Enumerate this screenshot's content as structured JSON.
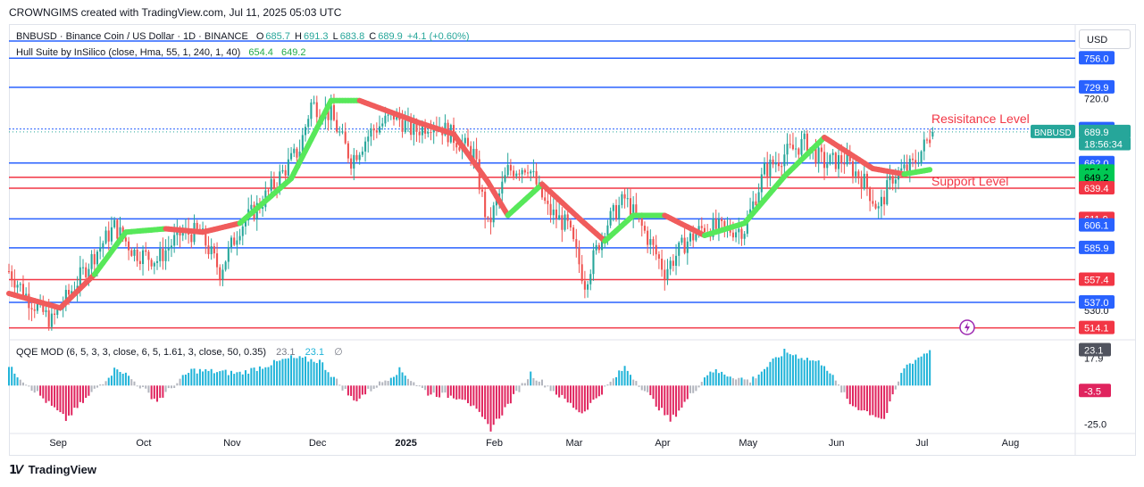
{
  "header": {
    "credit": "CROWNGIMS created with TradingView.com, Jul 11, 2025 05:03 UTC"
  },
  "footer": {
    "brand": "TradingView",
    "brand_icon": "tradingview-logo-icon"
  },
  "currency_button": "USD",
  "legend": {
    "symbol": "BNBUSD · Binance Coin / US Dollar · 1D · BINANCE",
    "o_label": "O",
    "o_value": "685.7",
    "h_label": "H",
    "h_value": "691.3",
    "l_label": "L",
    "l_value": "683.8",
    "c_label": "C",
    "c_value": "689.9",
    "change": "+4.1 (+0.60%)",
    "hull_label": "Hull Suite by InSilico (close, Hma, 55, 1, 240, 1, 40)",
    "hull_v1": "654.4",
    "hull_v2": "649.2",
    "qqe_label": "QQE MOD (6, 5, 3, 3, close, 6, 5, 1.61, 3, close, 50, 0.35)",
    "qqe_v1": "23.1",
    "qqe_v2": "23.1",
    "qqe_v3": "∅"
  },
  "colors": {
    "up": "#26a69a",
    "down": "#ef5350",
    "blue_line": "#2962ff",
    "red_line": "#f23645",
    "hull_green": "#57e85a",
    "hull_red": "#f05c5c",
    "qqe_blue": "#1fb3d8",
    "qqe_pink": "#e0245e",
    "qqe_gray": "#b2b5be"
  },
  "annotations": {
    "resistance": "Resisitance Level",
    "support": "Support Level"
  },
  "chart_data": {
    "type": "candlestick",
    "symbol": "BNBUSD",
    "timeframe": "1D",
    "ylim": [
      505,
      785
    ],
    "x_months": [
      "Sep",
      "Oct",
      "Nov",
      "Dec",
      "2025",
      "Feb",
      "Mar",
      "Apr",
      "May",
      "Jun",
      "Jul",
      "Aug"
    ],
    "y_ticks_hidden": [
      "720.0",
      "530.0"
    ],
    "blue_levels": [
      756.0,
      729.9,
      662.0,
      611.9,
      585.9,
      537.0
    ],
    "red_levels": [
      649.2,
      639.4,
      557.4,
      514.1
    ],
    "dotted_level": 692.5,
    "price_labels": [
      {
        "text": "756.0",
        "value": 756.0,
        "kind": "blue"
      },
      {
        "text": "729.9",
        "value": 729.9,
        "kind": "blue"
      },
      {
        "text": "692.5",
        "value": 692.5,
        "kind": "blue"
      },
      {
        "text": "689.9",
        "value": 689.9,
        "kind": "last"
      },
      {
        "text": "18:56:34",
        "value": 679.0,
        "kind": "last"
      },
      {
        "text": "662.0",
        "value": 662.0,
        "kind": "blue"
      },
      {
        "text": "654.4",
        "value": 654.4,
        "kind": "green"
      },
      {
        "text": "649.2",
        "value": 649.2,
        "kind": "green"
      },
      {
        "text": "639.4",
        "value": 639.4,
        "kind": "red"
      },
      {
        "text": "611.9",
        "value": 611.9,
        "kind": "red"
      },
      {
        "text": "606.1",
        "value": 606.1,
        "kind": "blue"
      },
      {
        "text": "585.9",
        "value": 585.9,
        "kind": "blue"
      },
      {
        "text": "557.4",
        "value": 557.4,
        "kind": "red"
      },
      {
        "text": "537.0",
        "value": 537.0,
        "kind": "blue"
      },
      {
        "text": "514.1",
        "value": 514.1,
        "kind": "red"
      }
    ],
    "symbol_tag": "BNBUSD",
    "close_anchors": [
      [
        "2024-08-21",
        565
      ],
      [
        "2024-08-28",
        540
      ],
      [
        "2024-09-05",
        520
      ],
      [
        "2024-09-12",
        548
      ],
      [
        "2024-09-20",
        580
      ],
      [
        "2024-09-27",
        605
      ],
      [
        "2024-10-04",
        582
      ],
      [
        "2024-10-12",
        575
      ],
      [
        "2024-10-20",
        598
      ],
      [
        "2024-10-27",
        600
      ],
      [
        "2024-11-03",
        565
      ],
      [
        "2024-11-10",
        605
      ],
      [
        "2024-11-17",
        625
      ],
      [
        "2024-11-24",
        650
      ],
      [
        "2024-12-01",
        675
      ],
      [
        "2024-12-05",
        715
      ],
      [
        "2024-12-12",
        705
      ],
      [
        "2024-12-19",
        665
      ],
      [
        "2024-12-26",
        690
      ],
      [
        "2025-01-03",
        705
      ],
      [
        "2025-01-10",
        690
      ],
      [
        "2025-01-17",
        700
      ],
      [
        "2025-01-24",
        685
      ],
      [
        "2025-01-31",
        670
      ],
      [
        "2025-02-05",
        605
      ],
      [
        "2025-02-12",
        655
      ],
      [
        "2025-02-19",
        660
      ],
      [
        "2025-02-26",
        620
      ],
      [
        "2025-03-05",
        605
      ],
      [
        "2025-03-11",
        555
      ],
      [
        "2025-03-18",
        605
      ],
      [
        "2025-03-25",
        630
      ],
      [
        "2025-04-01",
        600
      ],
      [
        "2025-04-08",
        565
      ],
      [
        "2025-04-15",
        590
      ],
      [
        "2025-04-22",
        605
      ],
      [
        "2025-04-29",
        602
      ],
      [
        "2025-05-06",
        603
      ],
      [
        "2025-05-13",
        655
      ],
      [
        "2025-05-20",
        670
      ],
      [
        "2025-05-27",
        680
      ],
      [
        "2025-06-03",
        662
      ],
      [
        "2025-06-10",
        665
      ],
      [
        "2025-06-17",
        645
      ],
      [
        "2025-06-22",
        620
      ],
      [
        "2025-06-27",
        650
      ],
      [
        "2025-07-04",
        660
      ],
      [
        "2025-07-11",
        689.9
      ]
    ],
    "hull_anchors": [
      [
        "2024-08-21",
        545,
        "red"
      ],
      [
        "2024-09-08",
        532,
        "red"
      ],
      [
        "2024-09-20",
        562,
        "green"
      ],
      [
        "2024-10-01",
        600,
        "green"
      ],
      [
        "2024-10-15",
        603,
        "red"
      ],
      [
        "2024-10-28",
        600,
        "red"
      ],
      [
        "2024-11-10",
        608,
        "green"
      ],
      [
        "2024-11-28",
        648,
        "green"
      ],
      [
        "2024-12-12",
        718,
        "green"
      ],
      [
        "2024-12-22",
        718,
        "red"
      ],
      [
        "2025-01-12",
        698,
        "red"
      ],
      [
        "2025-01-24",
        688,
        "red"
      ],
      [
        "2025-02-05",
        645,
        "red"
      ],
      [
        "2025-02-12",
        615,
        "green"
      ],
      [
        "2025-02-24",
        643,
        "red"
      ],
      [
        "2025-03-10",
        610,
        "red"
      ],
      [
        "2025-03-18",
        592,
        "green"
      ],
      [
        "2025-03-28",
        615,
        "green"
      ],
      [
        "2025-04-08",
        615,
        "red"
      ],
      [
        "2025-04-22",
        597,
        "green"
      ],
      [
        "2025-05-06",
        608,
        "green"
      ],
      [
        "2025-05-20",
        650,
        "green"
      ],
      [
        "2025-06-03",
        685,
        "red"
      ],
      [
        "2025-06-20",
        657,
        "red"
      ],
      [
        "2025-07-01",
        652,
        "green"
      ],
      [
        "2025-07-10",
        656,
        "green"
      ]
    ],
    "qqe_anchors": [
      [
        "2024-08-21",
        12
      ],
      [
        "2024-09-10",
        -22
      ],
      [
        "2024-09-28",
        12
      ],
      [
        "2024-10-12",
        -10
      ],
      [
        "2024-10-24",
        10
      ],
      [
        "2024-11-10",
        8
      ],
      [
        "2024-11-28",
        18
      ],
      [
        "2024-12-08",
        16
      ],
      [
        "2024-12-20",
        -10
      ],
      [
        "2025-01-05",
        10
      ],
      [
        "2025-01-15",
        -5
      ],
      [
        "2025-01-28",
        -8
      ],
      [
        "2025-02-06",
        -28
      ],
      [
        "2025-02-20",
        8
      ],
      [
        "2025-03-10",
        -18
      ],
      [
        "2025-03-25",
        12
      ],
      [
        "2025-04-10",
        -23
      ],
      [
        "2025-04-24",
        10
      ],
      [
        "2025-05-08",
        3
      ],
      [
        "2025-05-20",
        22
      ],
      [
        "2025-06-03",
        14
      ],
      [
        "2025-06-12",
        -12
      ],
      [
        "2025-06-24",
        -22
      ],
      [
        "2025-07-01",
        12
      ],
      [
        "2025-07-10",
        23.1
      ]
    ],
    "qqe_ylim": [
      -30,
      28
    ],
    "qqe_ticks": [
      "17.9",
      "-25.0"
    ],
    "qqe_labels": [
      {
        "text": "23.1",
        "value": 23.1,
        "kind": "gray"
      },
      {
        "text": "-3.5",
        "value": -3.5,
        "kind": "pink"
      }
    ]
  }
}
